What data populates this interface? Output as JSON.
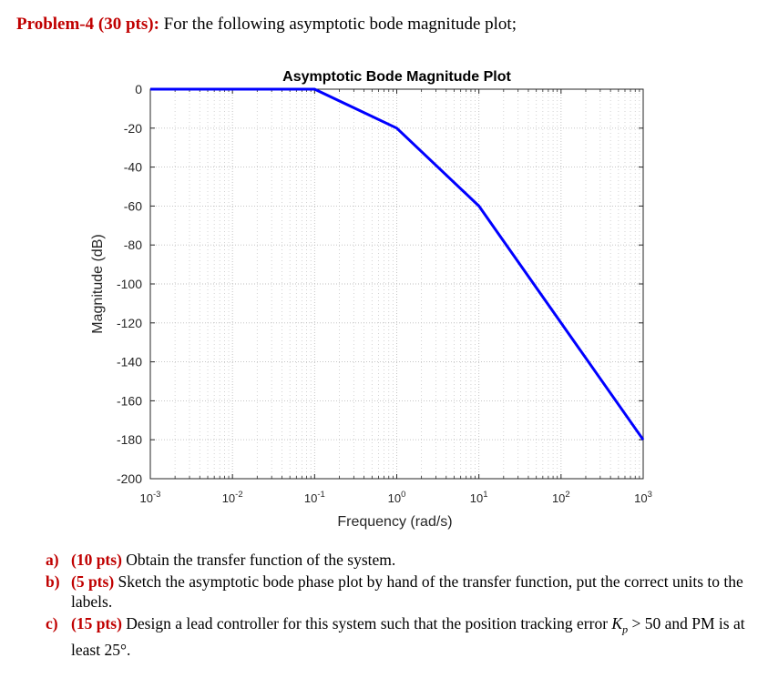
{
  "heading": {
    "label": "Problem-4 (30 pts):",
    "text": "For the following asymptotic bode magnitude plot;"
  },
  "chart_data": {
    "type": "line",
    "title": "Asymptotic Bode Magnitude Plot",
    "xlabel": "Frequency (rad/s)",
    "ylabel": "Magnitude (dB)",
    "x_scale": "log",
    "xlim": [
      0.001,
      1000
    ],
    "ylim": [
      -200,
      0
    ],
    "grid": true,
    "minor_grid": true,
    "legend": "none",
    "x_ticks": [
      {
        "value": 0.001,
        "base": "10",
        "exp": "-3"
      },
      {
        "value": 0.01,
        "base": "10",
        "exp": "-2"
      },
      {
        "value": 0.1,
        "base": "10",
        "exp": "-1"
      },
      {
        "value": 1,
        "base": "10",
        "exp": "0"
      },
      {
        "value": 10,
        "base": "10",
        "exp": "1"
      },
      {
        "value": 100,
        "base": "10",
        "exp": "2"
      },
      {
        "value": 1000,
        "base": "10",
        "exp": "3"
      }
    ],
    "y_ticks": [
      "0",
      "-20",
      "-40",
      "-60",
      "-80",
      "-100",
      "-120",
      "-140",
      "-160",
      "-180",
      "-200"
    ],
    "series": [
      {
        "color": "#0000ff",
        "x": [
          0.001,
          0.1,
          1,
          10,
          1000
        ],
        "y": [
          0,
          0,
          -20,
          -60,
          -180
        ]
      }
    ]
  },
  "questions": [
    {
      "letter": "a)",
      "points": "(10 pts)",
      "text": "Obtain the transfer function of the system."
    },
    {
      "letter": "b)",
      "points": "(5 pts)",
      "text": "Sketch the asymptotic bode phase plot by hand of the transfer function, put the correct units to the labels."
    },
    {
      "letter": "c)",
      "points": "(15 pts)",
      "text_before": "Design a lead controller for this system such that the position tracking error",
      "math_symbol": "K",
      "math_sub": "p",
      "math_rest": "> 50",
      "text_after": "and PM is at least 25°."
    }
  ]
}
